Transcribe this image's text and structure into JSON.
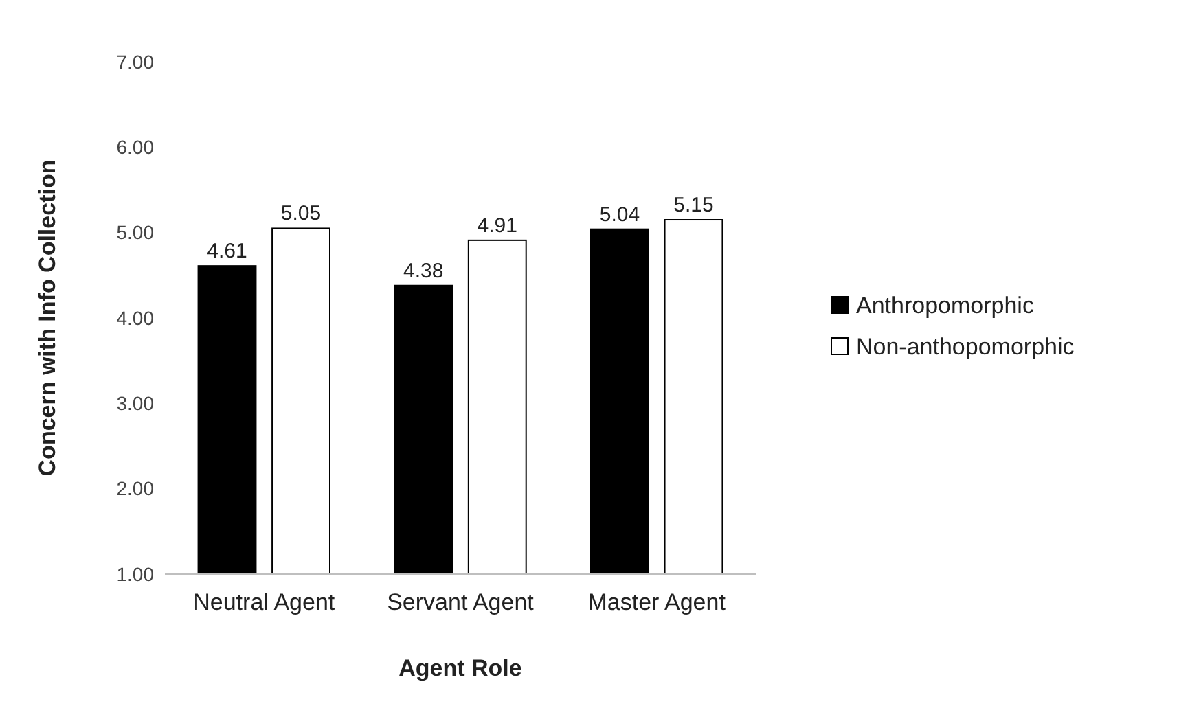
{
  "chart_data": {
    "type": "bar",
    "xlabel": "Agent Role",
    "ylabel": "Concern with Info Collection",
    "categories": [
      "Neutral Agent",
      "Servant Agent",
      "Master Agent"
    ],
    "series": [
      {
        "name": "Anthropomorphic",
        "color": "#000000",
        "values": [
          4.61,
          4.38,
          5.04
        ]
      },
      {
        "name": "Non-anthopomorphic",
        "color": "#ffffff",
        "values": [
          5.05,
          4.91,
          5.15
        ]
      }
    ],
    "ylim": [
      1,
      7
    ],
    "yticks": [
      {
        "value": 1,
        "label": "1.00"
      },
      {
        "value": 2,
        "label": "2.00"
      },
      {
        "value": 3,
        "label": "3.00"
      },
      {
        "value": 4,
        "label": "4.00"
      },
      {
        "value": 5,
        "label": "5.00"
      },
      {
        "value": 6,
        "label": "6.00"
      },
      {
        "value": 7,
        "label": "7.00"
      }
    ],
    "data_labels": true,
    "grid": false,
    "legend": "right"
  }
}
